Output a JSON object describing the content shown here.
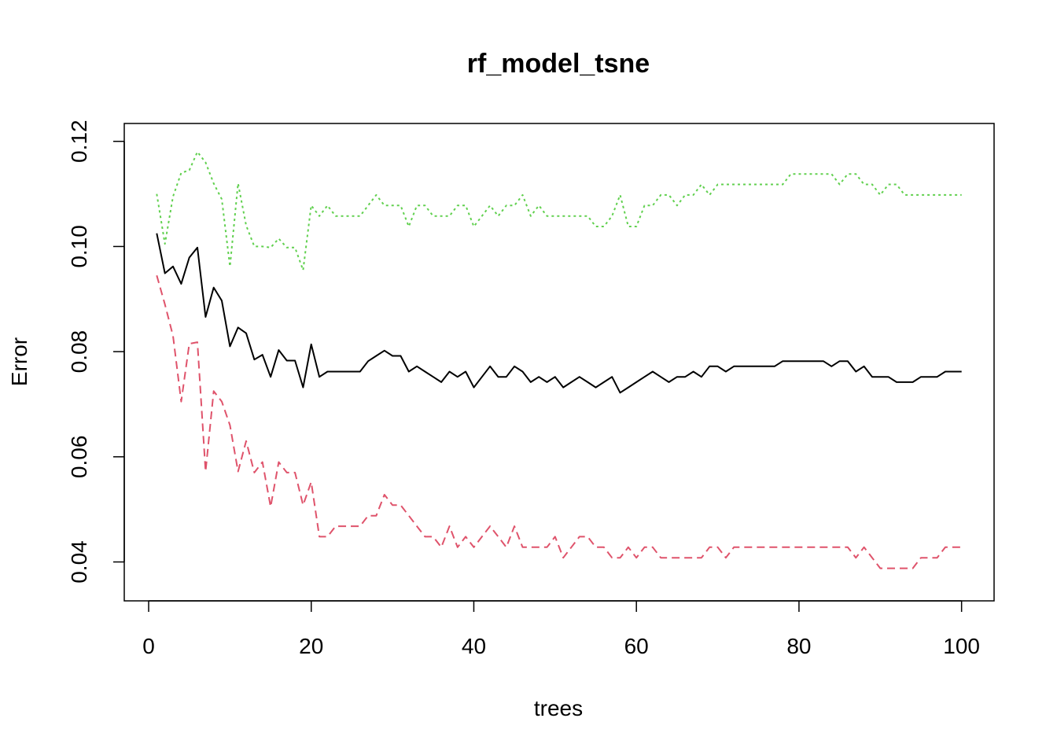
{
  "chart_data": {
    "type": "line",
    "title": "rf_model_tsne",
    "xlabel": "trees",
    "ylabel": "Error",
    "xlim": [
      -3,
      104
    ],
    "ylim": [
      0.0326,
      0.1234
    ],
    "x_ticks": [
      0,
      20,
      40,
      60,
      80,
      100
    ],
    "x_tick_labels": [
      "0",
      "20",
      "40",
      "60",
      "80",
      "100"
    ],
    "y_ticks": [
      0.04,
      0.06,
      0.08,
      0.1,
      0.12
    ],
    "y_tick_labels": [
      "0.04",
      "0.06",
      "0.08",
      "0.10",
      "0.12"
    ],
    "grid": false,
    "legend": "none",
    "x": [
      1,
      2,
      3,
      4,
      5,
      6,
      7,
      8,
      9,
      10,
      11,
      12,
      13,
      14,
      15,
      16,
      17,
      18,
      19,
      20,
      21,
      22,
      23,
      24,
      25,
      26,
      27,
      28,
      29,
      30,
      31,
      32,
      33,
      34,
      35,
      36,
      37,
      38,
      39,
      40,
      41,
      42,
      43,
      44,
      45,
      46,
      47,
      48,
      49,
      50,
      51,
      52,
      53,
      54,
      55,
      56,
      57,
      58,
      59,
      60,
      61,
      62,
      63,
      64,
      65,
      66,
      67,
      68,
      69,
      70,
      71,
      72,
      73,
      74,
      75,
      76,
      77,
      78,
      79,
      80,
      81,
      82,
      83,
      84,
      85,
      86,
      87,
      88,
      89,
      90,
      91,
      92,
      93,
      94,
      95,
      96,
      97,
      98,
      99,
      100
    ],
    "series": [
      {
        "color": "#000000",
        "dash": "solid",
        "values": [
          0.1025,
          0.0949,
          0.0962,
          0.0929,
          0.0979,
          0.0998,
          0.0866,
          0.0922,
          0.0897,
          0.081,
          0.0846,
          0.0835,
          0.0785,
          0.0794,
          0.0752,
          0.0803,
          0.0783,
          0.0783,
          0.0732,
          0.0814,
          0.0752,
          0.0762,
          0.0762,
          0.0762,
          0.0762,
          0.0762,
          0.0782,
          0.0792,
          0.0802,
          0.0792,
          0.0792,
          0.0762,
          0.0772,
          0.0762,
          0.0752,
          0.0742,
          0.0762,
          0.0752,
          0.0762,
          0.0732,
          0.0752,
          0.0772,
          0.0752,
          0.0752,
          0.0772,
          0.0762,
          0.0742,
          0.0752,
          0.0742,
          0.0752,
          0.0732,
          0.0742,
          0.0752,
          0.0742,
          0.0732,
          0.0742,
          0.0752,
          0.0722,
          0.0732,
          0.0742,
          0.0752,
          0.0762,
          0.0752,
          0.0742,
          0.0752,
          0.0752,
          0.0762,
          0.0752,
          0.0772,
          0.0772,
          0.0762,
          0.0772,
          0.0772,
          0.0772,
          0.0772,
          0.0772,
          0.0772,
          0.0782,
          0.0782,
          0.0782,
          0.0782,
          0.0782,
          0.0782,
          0.0772,
          0.0782,
          0.0782,
          0.0762,
          0.0772,
          0.0752,
          0.0752,
          0.0752,
          0.0742,
          0.0742,
          0.0742,
          0.0752,
          0.0752,
          0.0752,
          0.0762,
          0.0762,
          0.0762
        ]
      },
      {
        "color": "#DF536B",
        "dash": "dashed",
        "values": [
          0.0945,
          0.089,
          0.083,
          0.0705,
          0.0815,
          0.0818,
          0.0572,
          0.0725,
          0.0705,
          0.066,
          0.0572,
          0.063,
          0.057,
          0.059,
          0.0505,
          0.059,
          0.057,
          0.057,
          0.0508,
          0.0552,
          0.0448,
          0.0448,
          0.0468,
          0.0468,
          0.0468,
          0.0468,
          0.0488,
          0.0488,
          0.0528,
          0.0508,
          0.0508,
          0.0488,
          0.0468,
          0.0448,
          0.0448,
          0.0428,
          0.0468,
          0.0428,
          0.0448,
          0.0428,
          0.0448,
          0.0468,
          0.0448,
          0.0428,
          0.0468,
          0.0428,
          0.0428,
          0.0428,
          0.0428,
          0.0448,
          0.0408,
          0.0428,
          0.0448,
          0.0448,
          0.0428,
          0.0428,
          0.0408,
          0.0408,
          0.0428,
          0.0408,
          0.0428,
          0.0428,
          0.0408,
          0.0408,
          0.0408,
          0.0408,
          0.0408,
          0.0408,
          0.0428,
          0.0428,
          0.0408,
          0.0428,
          0.0428,
          0.0428,
          0.0428,
          0.0428,
          0.0428,
          0.0428,
          0.0428,
          0.0428,
          0.0428,
          0.0428,
          0.0428,
          0.0428,
          0.0428,
          0.0428,
          0.0408,
          0.0428,
          0.0408,
          0.0388,
          0.0388,
          0.0388,
          0.0388,
          0.0388,
          0.0408,
          0.0408,
          0.0408,
          0.0428,
          0.0428,
          0.0428
        ]
      },
      {
        "color": "#61D04F",
        "dash": "dotted",
        "values": [
          0.11,
          0.1005,
          0.1095,
          0.114,
          0.1145,
          0.118,
          0.116,
          0.112,
          0.109,
          0.0962,
          0.112,
          0.104,
          0.1,
          0.1,
          0.0998,
          0.1015,
          0.0998,
          0.0998,
          0.0955,
          0.1078,
          0.1058,
          0.1078,
          0.1058,
          0.1058,
          0.1058,
          0.1058,
          0.1078,
          0.1098,
          0.1078,
          0.1078,
          0.1078,
          0.1038,
          0.1078,
          0.1078,
          0.1058,
          0.1058,
          0.1058,
          0.1078,
          0.1078,
          0.1038,
          0.1058,
          0.1078,
          0.1058,
          0.1078,
          0.1078,
          0.1098,
          0.1058,
          0.1078,
          0.1058,
          0.1058,
          0.1058,
          0.1058,
          0.1058,
          0.1058,
          0.1038,
          0.1038,
          0.1058,
          0.1098,
          0.1038,
          0.1038,
          0.1078,
          0.1078,
          0.1098,
          0.1098,
          0.1078,
          0.1098,
          0.1098,
          0.1118,
          0.1098,
          0.1118,
          0.1118,
          0.1118,
          0.1118,
          0.1118,
          0.1118,
          0.1118,
          0.1118,
          0.1118,
          0.1138,
          0.1138,
          0.1138,
          0.1138,
          0.1138,
          0.1138,
          0.1118,
          0.1138,
          0.1138,
          0.1118,
          0.1118,
          0.1098,
          0.1118,
          0.1118,
          0.1098,
          0.1098,
          0.1098,
          0.1098,
          0.1098,
          0.1098,
          0.1098,
          0.1098
        ]
      }
    ]
  }
}
